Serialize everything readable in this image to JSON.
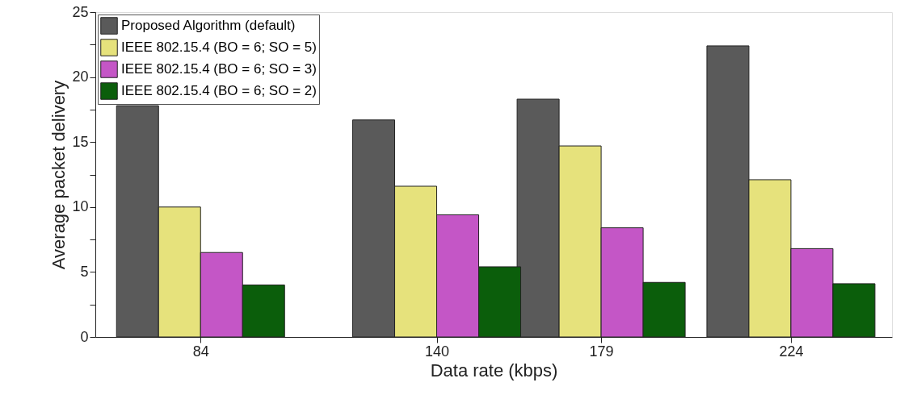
{
  "chart_data": {
    "type": "bar",
    "xlabel": "Data rate (kbps)",
    "ylabel": "Average packet delivery",
    "x": [
      84,
      140,
      179,
      224
    ],
    "xlim": [
      60,
      247
    ],
    "xticks": [
      84,
      140,
      179,
      224
    ],
    "ylim": [
      0,
      25
    ],
    "yticks": [
      0,
      {
        "value": 2.5,
        "label": null
      },
      5,
      {
        "value": 7.5,
        "label": null
      },
      10,
      {
        "value": 12.5,
        "label": null
      },
      15,
      {
        "value": 17.5,
        "label": null
      },
      20,
      {
        "value": 22.5,
        "label": null
      },
      25
    ],
    "grid": false,
    "legend": "top left",
    "series": [
      {
        "name": "Proposed Algorithm (default)",
        "color": "#5a5a5a",
        "values": [
          17.8,
          16.7,
          18.3,
          22.4
        ]
      },
      {
        "name": "IEEE 802.15.4 (BO = 6; SO = 5)",
        "color": "#e6e27c",
        "values": [
          10.0,
          11.6,
          14.7,
          12.1
        ]
      },
      {
        "name": "IEEE 802.15.4 (BO = 6; SO = 3)",
        "color": "#c456c6",
        "values": [
          6.5,
          9.4,
          8.4,
          6.8
        ]
      },
      {
        "name": "IEEE 802.15.4 (BO = 6; SO = 2)",
        "color": "#0b5e0b",
        "values": [
          4.0,
          5.4,
          4.2,
          4.1
        ]
      }
    ]
  }
}
